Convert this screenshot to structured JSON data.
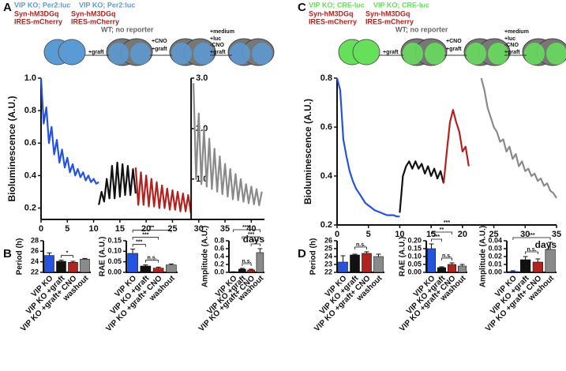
{
  "figure": {
    "letters": [
      "A",
      "B",
      "C",
      "D"
    ],
    "diagram_A": {
      "reporter": [
        "VIP KO; Per2:luc",
        "VIP KO; Per2:luc"
      ],
      "dreadd": [
        "Syn-hM3DGq",
        "IRES-mCherry",
        "Syn-hM3DGq",
        "IRES-mCherry"
      ],
      "wt": "WT; no reporter",
      "steps": [
        "+graft",
        "+CNO",
        "+graft",
        "+medium",
        "+luc",
        "-CNO",
        "+graft"
      ]
    },
    "diagram_C": {
      "reporter": [
        "VIP KO; CRE-luc",
        "VIP KO; CRE-luc"
      ],
      "dreadd": [
        "Syn-hM3DGq",
        "IRES-mCherry",
        "Syn-hM3DGq",
        "IRES-mCherry"
      ],
      "wt": "WT; no reporter",
      "steps": [
        "+graft",
        "+CNO",
        "+graft",
        "+medium",
        "+luc",
        "-CNO",
        "+graft"
      ]
    }
  },
  "chart_data": [
    {
      "type": "line",
      "ylabel": "Bioluminescence (A.U.)",
      "xlabel": "days",
      "xlim": [
        0,
        42.5
      ],
      "xticks": [
        0,
        5,
        10,
        15,
        20,
        25,
        30,
        35,
        40
      ],
      "ylim": [
        0.13,
        1.0
      ],
      "yticks": [
        0.2,
        0.4,
        0.6,
        0.8,
        {
          "value": 1.0,
          "label": "1.0"
        }
      ],
      "y2lim": [
        0.2,
        3.0
      ],
      "y2ticks": [
        {
          "value": 1.0,
          "label": "1.0"
        },
        {
          "value": 2.0,
          "label": "2.0"
        },
        {
          "value": 3.0,
          "label": "3.0"
        }
      ],
      "series": [
        {
          "color": "#2453e0",
          "x": [
            0,
            0.5,
            1,
            1.5,
            2,
            2.5,
            3,
            3.5,
            4,
            4.5,
            5,
            5.5,
            6,
            6.5,
            7,
            7.5,
            8,
            8.5,
            9,
            9.5,
            10,
            10.5,
            11
          ],
          "values": [
            1.0,
            0.72,
            0.82,
            0.6,
            0.7,
            0.53,
            0.62,
            0.48,
            0.56,
            0.45,
            0.51,
            0.42,
            0.47,
            0.4,
            0.44,
            0.39,
            0.42,
            0.37,
            0.4,
            0.36,
            0.38,
            0.35,
            0.36
          ]
        },
        {
          "color": "#111111",
          "x": [
            11,
            11.5,
            12,
            12.5,
            13,
            13.5,
            14,
            14.5,
            15,
            15.5,
            16,
            16.5,
            17,
            17.5,
            18
          ],
          "values": [
            0.22,
            0.3,
            0.24,
            0.38,
            0.26,
            0.46,
            0.26,
            0.48,
            0.27,
            0.47,
            0.28,
            0.46,
            0.28,
            0.44,
            0.29
          ]
        },
        {
          "color": "#b2221e",
          "x": [
            18,
            18.5,
            19,
            19.5,
            20,
            20.5,
            21,
            21.5,
            22,
            22.5,
            23,
            23.5,
            24,
            24.5,
            25,
            25.5,
            26,
            26.5,
            27,
            27.5,
            28,
            28.5
          ],
          "values": [
            0.45,
            0.22,
            0.42,
            0.22,
            0.4,
            0.21,
            0.38,
            0.21,
            0.36,
            0.2,
            0.34,
            0.2,
            0.32,
            0.19,
            0.31,
            0.19,
            0.3,
            0.18,
            0.29,
            0.18,
            0.28,
            0.17
          ]
        },
        {
          "color": "#8a8a8a",
          "axis": "y2",
          "x": [
            29,
            29.5,
            30,
            30.5,
            31,
            31.5,
            32,
            32.5,
            33,
            33.5,
            34,
            34.5,
            35,
            35.5,
            36,
            36.5,
            37,
            37.5,
            38,
            38.5,
            39,
            39.5,
            40,
            40.5,
            41,
            41.5,
            42
          ],
          "values": [
            2.9,
            1.0,
            2.3,
            0.9,
            2.0,
            0.85,
            1.8,
            0.8,
            1.6,
            0.75,
            1.45,
            0.7,
            1.3,
            0.65,
            1.2,
            0.6,
            1.1,
            0.58,
            1.0,
            0.55,
            0.9,
            0.52,
            0.85,
            0.5,
            0.8,
            0.48,
            0.75
          ]
        }
      ]
    },
    {
      "type": "bar",
      "ylabel": "Period (h)",
      "categories": [
        "VIP KO",
        "VIP KO +graft",
        "VIP KO +graft+ CNO",
        "washout"
      ],
      "colors": [
        "#2453e0",
        "#111111",
        "#b2221e",
        "#8a8a8a"
      ],
      "values": [
        25.2,
        24.1,
        23.9,
        24.5
      ],
      "errors": [
        0.5,
        0.2,
        0.2,
        0.15
      ],
      "ylim": [
        22,
        28
      ],
      "yticks": [
        22,
        24,
        26,
        28
      ],
      "comparisons": [
        {
          "pair": [
            "VIP KO +graft",
            "VIP KO +graft+ CNO"
          ],
          "label": "*"
        }
      ]
    },
    {
      "type": "bar",
      "ylabel": "RAE (A.U.)",
      "categories": [
        "VIP KO",
        "VIP KO +graft",
        "VIP KO +graft+ CNO",
        "washout"
      ],
      "colors": [
        "#2453e0",
        "#111111",
        "#b2221e",
        "#8a8a8a"
      ],
      "values": [
        0.09,
        0.03,
        0.02,
        0.035
      ],
      "errors": [
        0.02,
        0.005,
        0.005,
        0.005
      ],
      "ylim": [
        0,
        0.15
      ],
      "yticks": [
        {
          "value": 0,
          "label": "0.00"
        },
        0.05,
        {
          "value": 0.1,
          "label": "0.10"
        },
        0.15
      ],
      "comparisons": [
        {
          "pair": [
            "VIP KO +graft",
            "VIP KO +graft+ CNO"
          ],
          "label": "n.s."
        },
        {
          "pair": [
            "VIP KO",
            "VIP KO +graft"
          ],
          "label": "***"
        },
        {
          "pair": [
            "VIP KO",
            "VIP KO +graft+ CNO"
          ],
          "label": "***"
        },
        {
          "pair": [
            "VIP KO",
            "washout"
          ],
          "label": "**"
        }
      ]
    },
    {
      "type": "bar",
      "ylabel": "Amplitude (A.U.)",
      "categories": [
        "VIP KO",
        "VIP KO +graft",
        "VIP KO +graft+ CNO",
        "washout"
      ],
      "colors": [
        "#2453e0",
        "#111111",
        "#b2221e",
        "#8a8a8a"
      ],
      "values": [
        0.01,
        0.08,
        0.06,
        0.5
      ],
      "errors": [
        0.005,
        0.02,
        0.02,
        0.1
      ],
      "ylim": [
        0,
        0.8
      ],
      "yticks": [
        {
          "value": 0,
          "label": "0.0"
        },
        0.2,
        0.4,
        0.6,
        0.8
      ],
      "comparisons": [
        {
          "pair": [
            "VIP KO +graft",
            "VIP KO +graft+ CNO"
          ],
          "label": "n.s."
        },
        {
          "pair": [
            "VIP KO +graft+ CNO",
            "washout"
          ],
          "label": "***"
        },
        {
          "pair": [
            "VIP KO +graft",
            "washout"
          ],
          "label": "***"
        },
        {
          "pair": [
            "VIP KO",
            "washout"
          ],
          "label": "****"
        }
      ]
    },
    {
      "type": "line",
      "ylabel": "Bioluminescence (A.U.)",
      "xlabel": "days",
      "xlim": [
        0,
        35
      ],
      "xticks": [
        0,
        5,
        10,
        15,
        20,
        25,
        30,
        35
      ],
      "ylim": [
        0.2,
        0.8
      ],
      "yticks": [
        0.2,
        0.4,
        0.6,
        0.8
      ],
      "series": [
        {
          "color": "#2453e0",
          "x": [
            0,
            0.5,
            1,
            1.5,
            2,
            2.5,
            3,
            3.5,
            4,
            4.5,
            5,
            5.5,
            6,
            6.5,
            7,
            7.5,
            8,
            8.5,
            9,
            9.5,
            10
          ],
          "values": [
            0.8,
            0.75,
            0.55,
            0.48,
            0.42,
            0.38,
            0.35,
            0.33,
            0.31,
            0.29,
            0.28,
            0.27,
            0.26,
            0.255,
            0.25,
            0.245,
            0.24,
            0.24,
            0.24,
            0.235,
            0.235
          ]
        },
        {
          "color": "#111111",
          "x": [
            10,
            10.5,
            11,
            11.5,
            12,
            12.5,
            13,
            13.5,
            14,
            14.5,
            15,
            15.5,
            16,
            16.5,
            17
          ],
          "values": [
            0.25,
            0.4,
            0.44,
            0.46,
            0.43,
            0.46,
            0.43,
            0.45,
            0.41,
            0.44,
            0.4,
            0.43,
            0.39,
            0.42,
            0.37
          ]
        },
        {
          "color": "#b2221e",
          "x": [
            17,
            17.5,
            18,
            18.5,
            19,
            19.5,
            20,
            20.5,
            21
          ],
          "values": [
            0.37,
            0.5,
            0.62,
            0.67,
            0.62,
            0.58,
            0.5,
            0.52,
            0.44
          ]
        },
        {
          "color": "#8a8a8a",
          "x": [
            23,
            23.5,
            24,
            24.5,
            25,
            25.5,
            26,
            26.5,
            27,
            27.5,
            28,
            28.5,
            29,
            29.5,
            30,
            30.5,
            31,
            31.5,
            32,
            32.5,
            33,
            33.5,
            34,
            34.5,
            35
          ],
          "values": [
            0.8,
            0.75,
            0.68,
            0.64,
            0.6,
            0.58,
            0.54,
            0.55,
            0.5,
            0.52,
            0.47,
            0.49,
            0.44,
            0.46,
            0.42,
            0.43,
            0.4,
            0.41,
            0.38,
            0.39,
            0.36,
            0.37,
            0.34,
            0.33,
            0.31
          ]
        }
      ]
    },
    {
      "type": "bar",
      "ylabel": "Period (h)",
      "categories": [
        "VIP KO",
        "VIP KO +graft",
        "VIP KO +graft+ CNO",
        "washout"
      ],
      "colors": [
        "#2453e0",
        "#111111",
        "#b2221e",
        "#8a8a8a"
      ],
      "values": [
        23.3,
        24.2,
        24.4,
        24.0
      ],
      "errors": [
        0.8,
        0.1,
        0.2,
        0.3
      ],
      "ylim": [
        22,
        26
      ],
      "yticks": [
        22,
        23,
        24,
        25,
        26
      ],
      "comparisons": [
        {
          "pair": [
            "VIP KO +graft",
            "VIP KO +graft+ CNO"
          ],
          "label": "n.s."
        }
      ]
    },
    {
      "type": "bar",
      "ylabel": "RAE (A.U.)",
      "categories": [
        "VIP KO",
        "VIP KO +graft",
        "VIP KO +graft+ CNO",
        "washout"
      ],
      "colors": [
        "#2453e0",
        "#111111",
        "#b2221e",
        "#8a8a8a"
      ],
      "values": [
        0.15,
        0.03,
        0.05,
        0.04
      ],
      "errors": [
        0.03,
        0.005,
        0.01,
        0.01
      ],
      "ylim": [
        0,
        0.2
      ],
      "yticks": [
        {
          "value": 0,
          "label": "0.00"
        },
        0.05,
        {
          "value": 0.1,
          "label": "0.10"
        },
        0.15,
        {
          "value": 0.2,
          "label": "0.20"
        }
      ],
      "comparisons": [
        {
          "pair": [
            "VIP KO +graft",
            "VIP KO +graft+ CNO"
          ],
          "label": "n.s."
        },
        {
          "pair": [
            "VIP KO",
            "VIP KO +graft"
          ],
          "label": "***"
        },
        {
          "pair": [
            "VIP KO",
            "VIP KO +graft+ CNO"
          ],
          "label": "**"
        },
        {
          "pair": [
            "VIP KO",
            "washout"
          ],
          "label": "***"
        }
      ]
    },
    {
      "type": "bar",
      "ylabel": "Amplitude (A.U.)",
      "categories": [
        "VIP KO",
        "VIP KO +graft",
        "VIP KO +graft+ CNO",
        "washout"
      ],
      "colors": [
        "#2453e0",
        "#111111",
        "#b2221e",
        "#8a8a8a"
      ],
      "values": [
        0.001,
        0.016,
        0.013,
        0.029
      ],
      "errors": [
        0.001,
        0.004,
        0.004,
        0.009
      ],
      "ylim": [
        0,
        0.04
      ],
      "yticks": [
        {
          "value": 0,
          "label": "0.00"
        },
        0.01,
        0.02,
        0.03,
        0.04
      ],
      "comparisons": [
        {
          "pair": [
            "VIP KO +graft",
            "VIP KO +graft+ CNO"
          ],
          "label": "n.s."
        },
        {
          "pair": [
            "VIP KO",
            "washout"
          ],
          "label": "***"
        }
      ]
    }
  ]
}
